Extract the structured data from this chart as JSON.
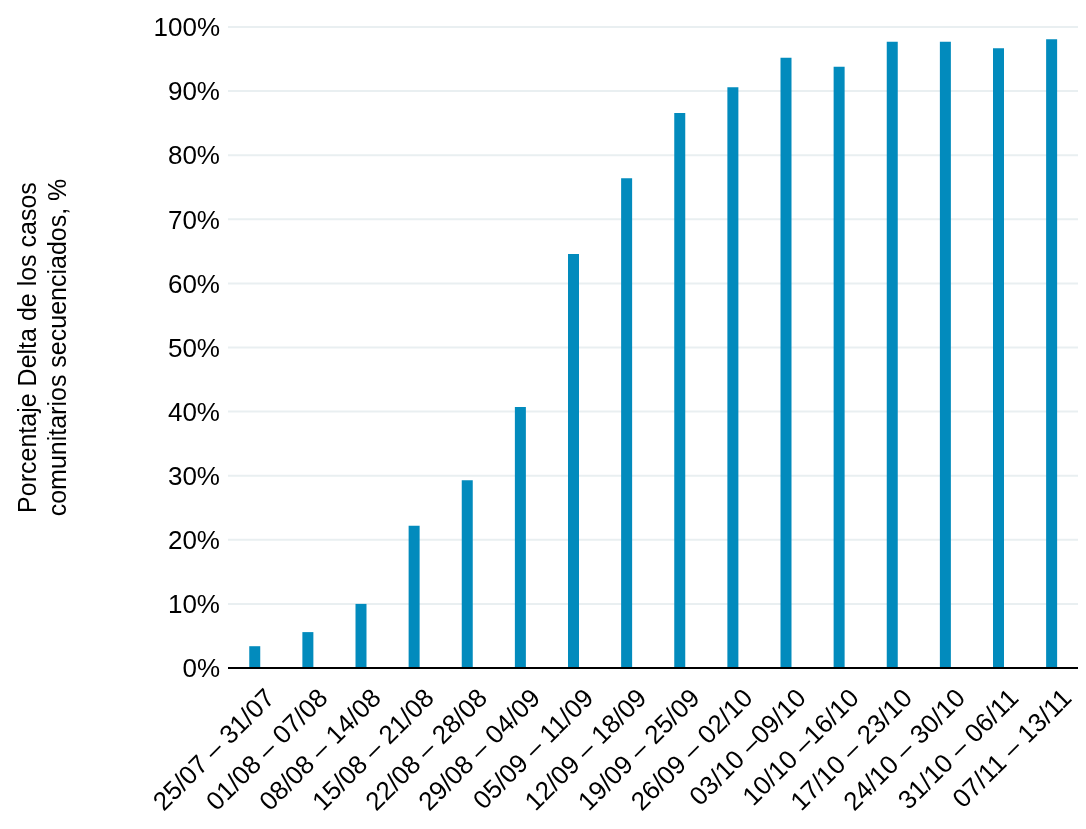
{
  "chart_data": {
    "type": "bar",
    "ylabel": "Porcentaje Delta de los casos comunitarios secuenciados, %",
    "categories": [
      "25/07 – 31/07",
      "01/08 – 07/08",
      "08/08 – 14/08",
      "15/08 – 21/08",
      "22/08 – 28/08",
      "29/08 – 04/09",
      "05/09 – 11/09",
      "12/09 – 18/09",
      "19/09 – 25/09",
      "26/09 – 02/10",
      "03/10 –09/10",
      "10/10 –16/10",
      "17/10 – 23/10",
      "24/10 – 30/10",
      "31/10 – 06/11",
      "07/11 – 13/11"
    ],
    "values": [
      3.4,
      5.6,
      10.0,
      22.2,
      29.3,
      40.7,
      64.6,
      76.4,
      86.6,
      90.6,
      95.2,
      93.8,
      97.7,
      97.7,
      96.7,
      98.1
    ],
    "color": "#028bbd",
    "ylim": [
      0,
      100
    ],
    "yticks": [
      {
        "value": 0,
        "label": "0%"
      },
      {
        "value": 10,
        "label": "10%"
      },
      {
        "value": 20,
        "label": "20%"
      },
      {
        "value": 30,
        "label": "30%"
      },
      {
        "value": 40,
        "label": "40%"
      },
      {
        "value": 50,
        "label": "50%"
      },
      {
        "value": 60,
        "label": "60%"
      },
      {
        "value": 70,
        "label": "70%"
      },
      {
        "value": 80,
        "label": "80%"
      },
      {
        "value": 90,
        "label": "90%"
      },
      {
        "value": 100,
        "label": "100%"
      }
    ],
    "grid": "y",
    "legend": false
  }
}
